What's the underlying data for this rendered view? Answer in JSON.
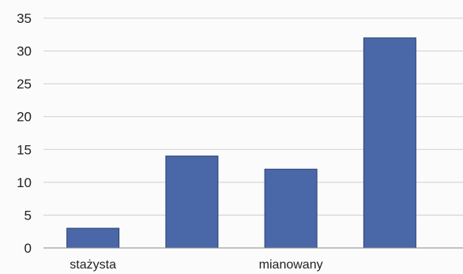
{
  "chart_data": {
    "type": "bar",
    "title": "",
    "xlabel": "",
    "ylabel": "",
    "categories": [
      "stażysta",
      "",
      "mianowany",
      ""
    ],
    "values": [
      3,
      14,
      12,
      32
    ],
    "ylim": [
      0,
      35
    ],
    "yticks": [
      0,
      5,
      10,
      15,
      20,
      25,
      30,
      35
    ],
    "grid": true,
    "legend": "none",
    "bar_color": "#4a67a8",
    "bar_edge_color": "#2c3f73",
    "grid_color": "#cfcfcf",
    "axis_color": "#888888"
  }
}
